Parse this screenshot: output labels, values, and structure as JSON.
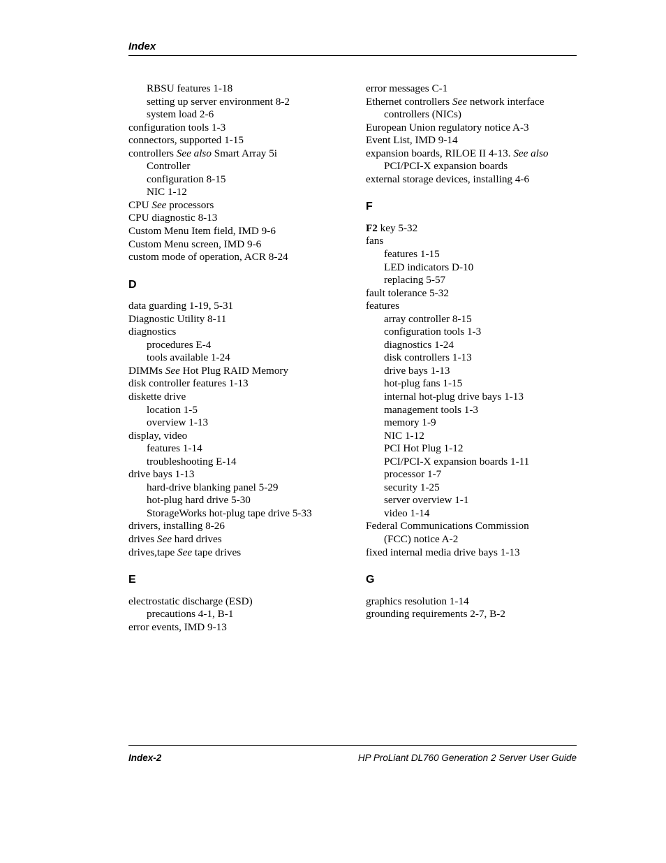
{
  "header": {
    "title": "Index"
  },
  "footer": {
    "left": "Index-2",
    "right": "HP ProLiant DL760 Generation 2 Server User Guide"
  },
  "col1": {
    "c_cont": [
      {
        "t": "RBSU features   1-18",
        "cls": "sub"
      },
      {
        "t": "setting up server environment   8-2",
        "cls": "sub"
      },
      {
        "t": "system load   2-6",
        "cls": "sub"
      },
      {
        "t": "configuration tools   1-3",
        "cls": ""
      },
      {
        "t": "connectors, supported   1-15",
        "cls": ""
      },
      {
        "html": "controllers   <span class='see'>See also</span> Smart Array 5i",
        "cls": ""
      },
      {
        "t": " Controller",
        "cls": "sub"
      },
      {
        "t": "configuration   8-15",
        "cls": "sub"
      },
      {
        "t": "NIC   1-12",
        "cls": "sub"
      },
      {
        "html": "CPU   <span class='see'>See</span> processors",
        "cls": ""
      },
      {
        "t": "CPU diagnostic   8-13",
        "cls": ""
      },
      {
        "t": "Custom Menu Item field, IMD   9-6",
        "cls": ""
      },
      {
        "t": "Custom Menu screen, IMD   9-6",
        "cls": ""
      },
      {
        "t": "custom mode of operation, ACR   8-24",
        "cls": ""
      }
    ],
    "d_letter": "D",
    "d": [
      {
        "t": "data guarding   1-19, 5-31",
        "cls": ""
      },
      {
        "t": "Diagnostic Utility   8-11",
        "cls": ""
      },
      {
        "t": "diagnostics",
        "cls": ""
      },
      {
        "t": "procedures   E-4",
        "cls": "sub"
      },
      {
        "t": "tools available   1-24",
        "cls": "sub"
      },
      {
        "html": "DIMMs   <span class='see'>See</span> Hot Plug RAID Memory",
        "cls": ""
      },
      {
        "t": "disk controller features   1-13",
        "cls": ""
      },
      {
        "t": "diskette drive",
        "cls": ""
      },
      {
        "t": "location   1-5",
        "cls": "sub"
      },
      {
        "t": "overview   1-13",
        "cls": "sub"
      },
      {
        "t": "display, video",
        "cls": ""
      },
      {
        "t": "features   1-14",
        "cls": "sub"
      },
      {
        "t": "troubleshooting   E-14",
        "cls": "sub"
      },
      {
        "t": "drive bays   1-13",
        "cls": ""
      },
      {
        "t": "hard-drive blanking panel   5-29",
        "cls": "sub"
      },
      {
        "t": "hot-plug hard drive   5-30",
        "cls": "sub"
      },
      {
        "t": "StorageWorks hot-plug tape drive   5-33",
        "cls": "sub"
      },
      {
        "t": "drivers, installing   8-26",
        "cls": ""
      },
      {
        "html": "drives   <span class='see'>See</span> hard drives",
        "cls": ""
      },
      {
        "html": "drives,tape   <span class='see'>See</span> tape drives",
        "cls": ""
      }
    ],
    "e_letter": "E",
    "e": [
      {
        "t": "electrostatic discharge (ESD)",
        "cls": ""
      },
      {
        "t": " precautions   4-1, B-1",
        "cls": "sub"
      },
      {
        "t": "error events, IMD   9-13",
        "cls": ""
      }
    ]
  },
  "col2": {
    "e_cont": [
      {
        "t": "error messages   C-1",
        "cls": ""
      },
      {
        "html": "Ethernet controllers   <span class='see'>See</span> network interface",
        "cls": ""
      },
      {
        "t": "controllers (NICs)",
        "cls": "sub"
      },
      {
        "t": "European Union regulatory notice   A-3",
        "cls": ""
      },
      {
        "t": "Event List, IMD   9-14",
        "cls": ""
      },
      {
        "html": "expansion boards, RILOE II   4-13. <span class='see'>See also</span>",
        "cls": ""
      },
      {
        "t": "PCI/PCI-X expansion boards",
        "cls": "sub"
      },
      {
        "t": "external storage devices, installing   4-6",
        "cls": ""
      }
    ],
    "f_letter": "F",
    "f": [
      {
        "html": "<span class='bold'>F2</span> key   5-32",
        "cls": ""
      },
      {
        "t": "fans",
        "cls": ""
      },
      {
        "t": "features   1-15",
        "cls": "sub"
      },
      {
        "t": "LED indicators   D-10",
        "cls": "sub"
      },
      {
        "t": "replacing   5-57",
        "cls": "sub"
      },
      {
        "t": "fault tolerance   5-32",
        "cls": ""
      },
      {
        "t": "features",
        "cls": ""
      },
      {
        "t": "array controller   8-15",
        "cls": "sub"
      },
      {
        "t": "configuration tools   1-3",
        "cls": "sub"
      },
      {
        "t": "diagnostics   1-24",
        "cls": "sub"
      },
      {
        "t": "disk controllers   1-13",
        "cls": "sub"
      },
      {
        "t": "drive bays   1-13",
        "cls": "sub"
      },
      {
        "t": "hot-plug fans   1-15",
        "cls": "sub"
      },
      {
        "t": "internal hot-plug drive bays   1-13",
        "cls": "sub"
      },
      {
        "t": "management tools   1-3",
        "cls": "sub"
      },
      {
        "t": "memory   1-9",
        "cls": "sub"
      },
      {
        "t": "NIC   1-12",
        "cls": "sub"
      },
      {
        "t": "PCI Hot Plug   1-12",
        "cls": "sub"
      },
      {
        "t": "PCI/PCI-X expansion boards   1-11",
        "cls": "sub"
      },
      {
        "t": "processor   1-7",
        "cls": "sub"
      },
      {
        "t": "security   1-25",
        "cls": "sub"
      },
      {
        "t": "server overview   1-1",
        "cls": "sub"
      },
      {
        "t": "video   1-14",
        "cls": "sub"
      },
      {
        "t": "Federal Communications Commission",
        "cls": ""
      },
      {
        "t": "(FCC) notice   A-2",
        "cls": "sub"
      },
      {
        "t": "fixed internal media drive bays   1-13",
        "cls": ""
      }
    ],
    "g_letter": "G",
    "g": [
      {
        "t": "graphics resolution   1-14",
        "cls": ""
      },
      {
        "t": "grounding requirements   2-7, B-2",
        "cls": ""
      }
    ]
  }
}
